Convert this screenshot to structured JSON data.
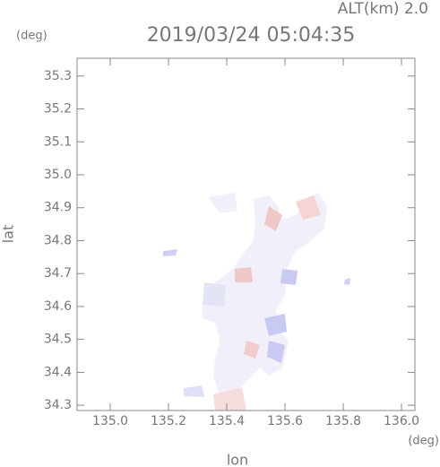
{
  "chart_data": {
    "type": "map",
    "title": "2019/03/24 05:04:35",
    "altitude_text": "ALT(km)  2.0",
    "y_unit": "(deg)",
    "x_unit": "(deg)",
    "x_label": "lon",
    "y_label": "lat",
    "xlim": [
      134.886,
      136.046
    ],
    "ylim": [
      34.284,
      35.354
    ],
    "xticks": [
      {
        "value": 135.0,
        "label": "135.0"
      },
      135.2,
      135.4,
      135.6,
      135.8,
      {
        "value": 136.0,
        "label": "136.0"
      }
    ],
    "yticks": [
      34.3,
      34.4,
      34.5,
      34.6,
      34.7,
      34.8,
      34.9,
      {
        "value": 35.0,
        "label": "35.0"
      },
      35.1,
      35.2,
      35.3
    ],
    "grid": false
  }
}
